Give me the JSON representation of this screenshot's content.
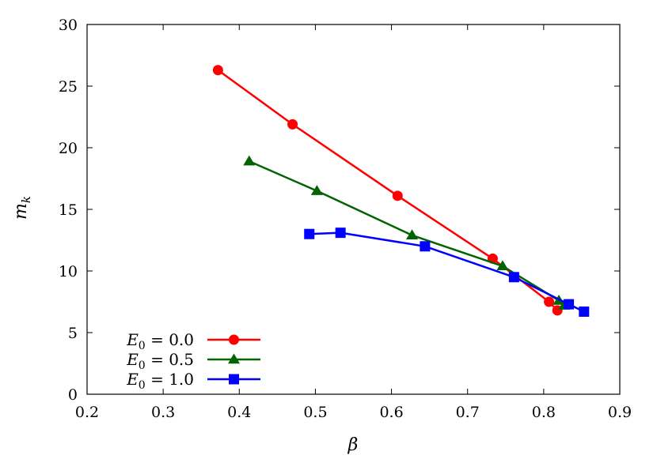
{
  "chart_data": {
    "type": "line",
    "xlabel": "β",
    "ylabel": "m",
    "ylabel_sub": "k",
    "xlim": [
      0.2,
      0.9
    ],
    "ylim": [
      0,
      30
    ],
    "xticks": [
      "0.2",
      "0.3",
      "0.4",
      "0.5",
      "0.6",
      "0.7",
      "0.8",
      "0.9"
    ],
    "yticks": [
      "0",
      "5",
      "10",
      "15",
      "20",
      "25",
      "30"
    ],
    "grid": false,
    "legend_position": "bottom-left",
    "series": [
      {
        "name": "E0 = 0.0",
        "legend": {
          "var": "E",
          "sub": "0",
          "rest": " = 0.0"
        },
        "color": "#ff0000",
        "marker": "circle",
        "x": [
          0.372,
          0.47,
          0.608,
          0.733,
          0.807,
          0.818
        ],
        "y": [
          26.3,
          21.9,
          16.1,
          11.0,
          7.5,
          6.8
        ]
      },
      {
        "name": "E0 = 0.5",
        "legend": {
          "var": "E",
          "sub": "0",
          "rest": " = 0.5"
        },
        "color": "#006400",
        "marker": "triangle",
        "x": [
          0.413,
          0.502,
          0.627,
          0.746,
          0.82,
          0.827
        ],
        "y": [
          18.9,
          16.5,
          12.9,
          10.4,
          7.6,
          7.2
        ]
      },
      {
        "name": "E0 = 1.0",
        "legend": {
          "var": "E",
          "sub": "0",
          "rest": " = 1.0"
        },
        "color": "#0000ff",
        "marker": "square",
        "x": [
          0.492,
          0.533,
          0.644,
          0.761,
          0.833,
          0.853
        ],
        "y": [
          13.0,
          13.1,
          12.0,
          9.5,
          7.3,
          6.7
        ]
      }
    ]
  }
}
